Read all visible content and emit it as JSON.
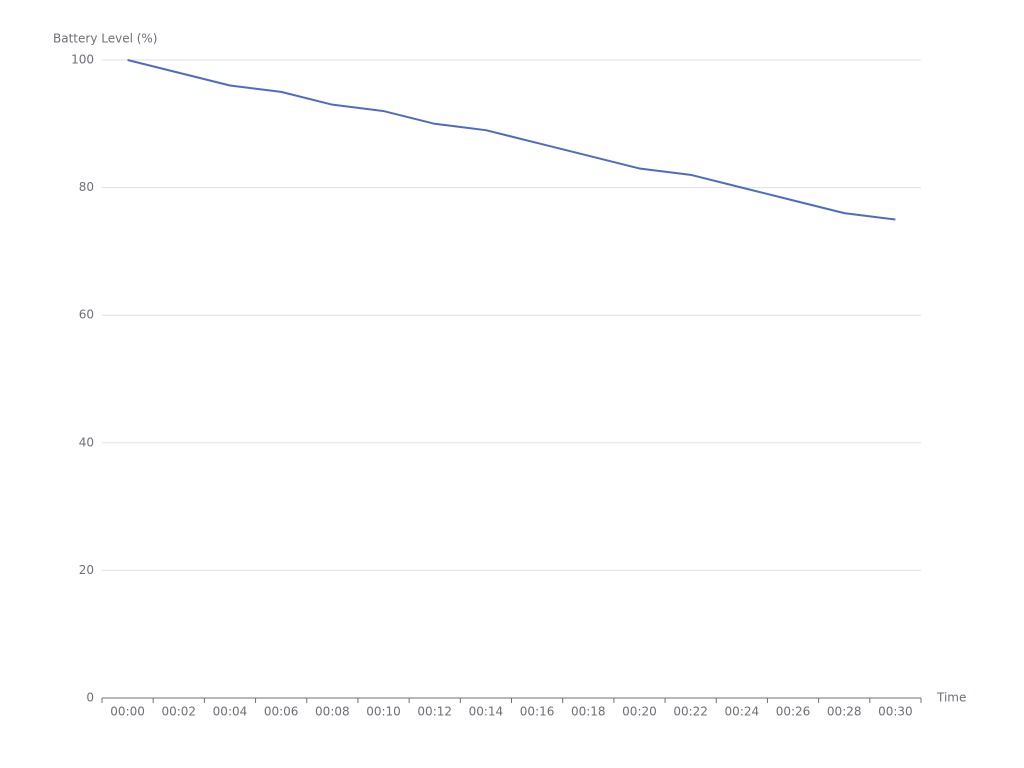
{
  "chart_data": {
    "type": "line",
    "y_label": "Battery Level (%)",
    "x_label": "Time",
    "categories": [
      "00:00",
      "00:02",
      "00:04",
      "00:06",
      "00:08",
      "00:10",
      "00:12",
      "00:14",
      "00:16",
      "00:18",
      "00:20",
      "00:22",
      "00:24",
      "00:26",
      "00:28",
      "00:30"
    ],
    "series": [
      {
        "name": "Battery Level",
        "color": "#4e6bc4",
        "values": [
          100,
          98,
          96,
          95,
          93,
          92,
          90,
          89,
          87,
          85,
          83,
          82,
          80,
          78,
          76,
          75
        ]
      }
    ],
    "ylim": [
      0,
      100
    ],
    "yticks": [
      0,
      20,
      40,
      60,
      80,
      100
    ],
    "grid": true
  }
}
